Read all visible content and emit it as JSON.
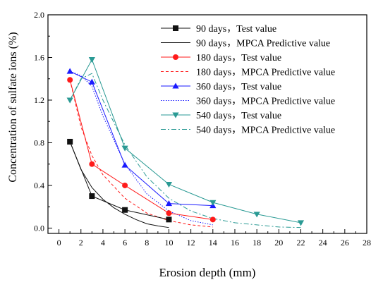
{
  "chart_data": {
    "type": "scatter",
    "title": "",
    "xlabel": "Erosion depth (mm)",
    "ylabel": "Concentration of sulfate ions (%)",
    "xlim": [
      -1,
      28
    ],
    "ylim": [
      -0.05,
      2.0
    ],
    "xticks": [
      0,
      2,
      4,
      6,
      8,
      10,
      12,
      14,
      16,
      18,
      20,
      22,
      24,
      26,
      28
    ],
    "yticks": [
      0.0,
      0.4,
      0.8,
      1.2,
      1.6,
      2.0
    ],
    "grid": false,
    "legend_position": "top-right",
    "series": [
      {
        "name": "90 days，Test value",
        "kind": "test",
        "marker": "square",
        "color": "#111111",
        "x": [
          1,
          3,
          6,
          10
        ],
        "y": [
          0.81,
          0.3,
          0.17,
          0.08
        ]
      },
      {
        "name": "90 days，MPCA Predictive value",
        "kind": "predictive",
        "dash": "solid",
        "color": "#111111",
        "x": [
          1,
          2,
          3,
          4,
          5,
          6,
          7,
          8,
          9,
          10
        ],
        "y": [
          0.81,
          0.55,
          0.38,
          0.27,
          0.19,
          0.13,
          0.08,
          0.04,
          0.02,
          0.005
        ]
      },
      {
        "name": "180 days，Test value",
        "kind": "test",
        "marker": "circle",
        "color": "#ff1a1a",
        "x": [
          1,
          3,
          6,
          10,
          14
        ],
        "y": [
          1.39,
          0.6,
          0.4,
          0.14,
          0.08
        ]
      },
      {
        "name": "180 days，MPCA Predictive value",
        "kind": "predictive",
        "dash": "dash",
        "color": "#ff1a1a",
        "x": [
          1,
          2,
          3,
          4,
          6,
          8,
          10,
          12,
          14
        ],
        "y": [
          1.39,
          0.95,
          0.68,
          0.5,
          0.28,
          0.14,
          0.07,
          0.03,
          0.01
        ]
      },
      {
        "name": "360 days，Test value",
        "kind": "test",
        "marker": "triangle-up",
        "color": "#1a1aff",
        "x": [
          1,
          3,
          6,
          10,
          14
        ],
        "y": [
          1.47,
          1.37,
          0.59,
          0.23,
          0.21
        ]
      },
      {
        "name": "360 days，MPCA Predictive value",
        "kind": "predictive",
        "dash": "dot",
        "color": "#1a1aff",
        "x": [
          1,
          2,
          3,
          4,
          6,
          8,
          10,
          12,
          14
        ],
        "y": [
          1.47,
          1.43,
          1.33,
          1.05,
          0.6,
          0.32,
          0.16,
          0.07,
          0.03
        ]
      },
      {
        "name": "540 days，Test value",
        "kind": "test",
        "marker": "triangle-down",
        "color": "#2a9a94",
        "x": [
          1,
          3,
          6,
          10,
          14,
          18,
          22
        ],
        "y": [
          1.2,
          1.58,
          0.75,
          0.41,
          0.24,
          0.13,
          0.05
        ]
      },
      {
        "name": "540 days，MPCA Predictive value",
        "kind": "predictive",
        "dash": "dashdot",
        "color": "#2a9a94",
        "x": [
          1,
          2,
          3,
          4,
          6,
          8,
          10,
          12,
          14,
          16,
          18,
          20,
          22
        ],
        "y": [
          1.2,
          1.4,
          1.45,
          1.2,
          0.78,
          0.48,
          0.28,
          0.16,
          0.09,
          0.05,
          0.03,
          0.01,
          0.005
        ]
      }
    ]
  }
}
